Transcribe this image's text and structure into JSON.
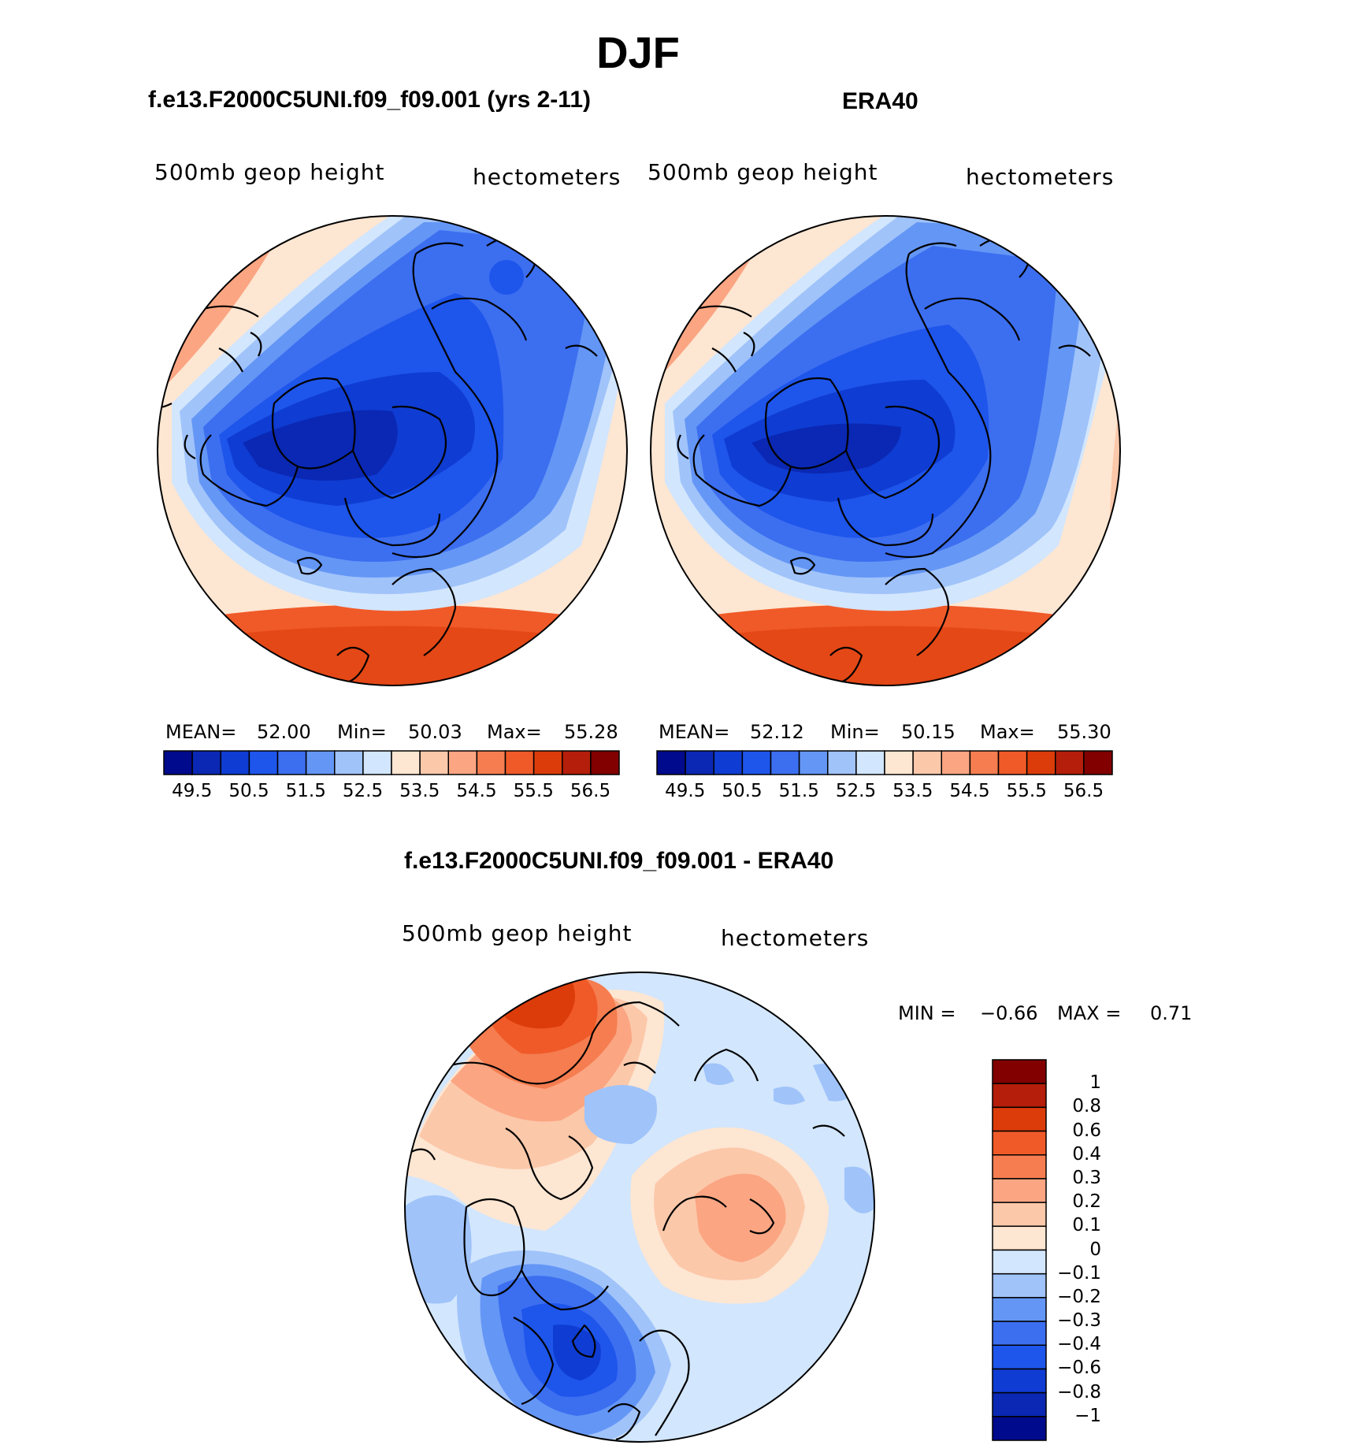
{
  "page_title": "DJF",
  "panels": [
    {
      "id": "model",
      "title": "f.e13.F2000C5UNI.f09_f09.001 (yrs 2-11)",
      "field_label": "500mb geop height",
      "units_label": "hectometers",
      "stats": {
        "mean_label": "MEAN=",
        "mean": "52.00",
        "min_label": "Min=",
        "min": "50.03",
        "max_label": "Max=",
        "max": "55.28"
      }
    },
    {
      "id": "era40",
      "title": "ERA40",
      "field_label": "500mb geop height",
      "units_label": "hectometers",
      "stats": {
        "mean_label": "MEAN=",
        "mean": "52.12",
        "min_label": "Min=",
        "min": "50.15",
        "max_label": "Max=",
        "max": "55.30"
      }
    }
  ],
  "abs_colorbar": {
    "colors": [
      "#000a8c",
      "#0a28b4",
      "#0f3cd2",
      "#1e55eb",
      "#3c6ef0",
      "#6496f5",
      "#a0c3fa",
      "#d2e6fd",
      "#fde6d2",
      "#fcc8aa",
      "#fba582",
      "#f57d50",
      "#f05a28",
      "#dc3c0a",
      "#b41e0a",
      "#820000"
    ],
    "tick_labels": [
      "49.5",
      "50.5",
      "51.5",
      "52.5",
      "53.5",
      "54.5",
      "55.5",
      "56.5"
    ]
  },
  "diff_panel": {
    "title": "f.e13.F2000C5UNI.f09_f09.001 - ERA40",
    "field_label": "500mb geop height",
    "units_label": "hectometers",
    "min_label": "MIN =",
    "min_value": "−0.66",
    "max_label": "MAX =",
    "max_value": "0.71",
    "colorbar": {
      "colors": [
        "#820000",
        "#b41e0a",
        "#dc3c0a",
        "#f05a28",
        "#f57d50",
        "#fba582",
        "#fcc8aa",
        "#fde6d2",
        "#d2e6fd",
        "#a0c3fa",
        "#6496f5",
        "#3c6ef0",
        "#1e55eb",
        "#0f3cd2",
        "#0a28b4",
        "#000a8c"
      ],
      "tick_labels": [
        "1",
        "0.8",
        "0.6",
        "0.4",
        "0.3",
        "0.2",
        "0.1",
        "0",
        "−0.1",
        "−0.2",
        "−0.3",
        "−0.4",
        "−0.6",
        "−0.8",
        "−1"
      ]
    }
  },
  "colors": {
    "deep_blue": "#000a8c",
    "mid_blue": "#1e55eb",
    "light_blue": "#d2e6fd",
    "light_red": "#fde6d2",
    "mid_red": "#f05a28",
    "deep_red": "#820000",
    "coastline": "#000000"
  }
}
